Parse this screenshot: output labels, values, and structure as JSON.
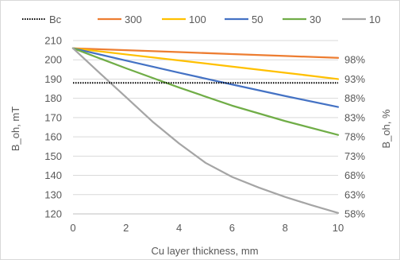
{
  "chart_data": {
    "type": "line",
    "xlabel": "Cu layer thickness, mm",
    "ylabel": "B_oh, mT",
    "y2label": "B_oh, %",
    "xlim": [
      0,
      10
    ],
    "ylim": [
      120,
      210
    ],
    "x_ticks": [
      "0",
      "2",
      "4",
      "6",
      "8",
      "10"
    ],
    "y_ticks": [
      "120",
      "130",
      "140",
      "150",
      "160",
      "170",
      "180",
      "190",
      "200",
      "210"
    ],
    "y2_ticks": [
      "58%",
      "63%",
      "68%",
      "73%",
      "78%",
      "83%",
      "88%",
      "93%",
      "98%"
    ],
    "grid": "horizontal",
    "legend_position": "top",
    "reference_line": {
      "name": "Bc",
      "value": 188,
      "color": "#000000",
      "style": "dotted"
    },
    "series": [
      {
        "name": "300",
        "color": "#ED7D31",
        "x": [
          0,
          2,
          4,
          6,
          8,
          10
        ],
        "values": [
          206,
          205,
          204,
          203,
          202,
          201
        ]
      },
      {
        "name": "100",
        "color": "#FFC000",
        "x": [
          0,
          2,
          4,
          6,
          8,
          10
        ],
        "values": [
          206,
          202.8,
          199.7,
          196.5,
          193.3,
          190
        ]
      },
      {
        "name": "50",
        "color": "#4472C4",
        "x": [
          0,
          2,
          4,
          6,
          8,
          10
        ],
        "values": [
          206,
          199.6,
          193.3,
          187.2,
          181.2,
          175.5
        ]
      },
      {
        "name": "30",
        "color": "#70AD47",
        "x": [
          0,
          2,
          4,
          6,
          8,
          10
        ],
        "values": [
          206,
          195.6,
          185.6,
          176.2,
          168.2,
          161
        ]
      },
      {
        "name": "10",
        "color": "#A5A5A5",
        "x": [
          0,
          1,
          2,
          3,
          4,
          5,
          6,
          7,
          8,
          9,
          10
        ],
        "values": [
          206,
          193.2,
          180.6,
          167.9,
          156.6,
          146.5,
          139.2,
          133.7,
          128.8,
          124.5,
          120.5
        ]
      }
    ]
  }
}
